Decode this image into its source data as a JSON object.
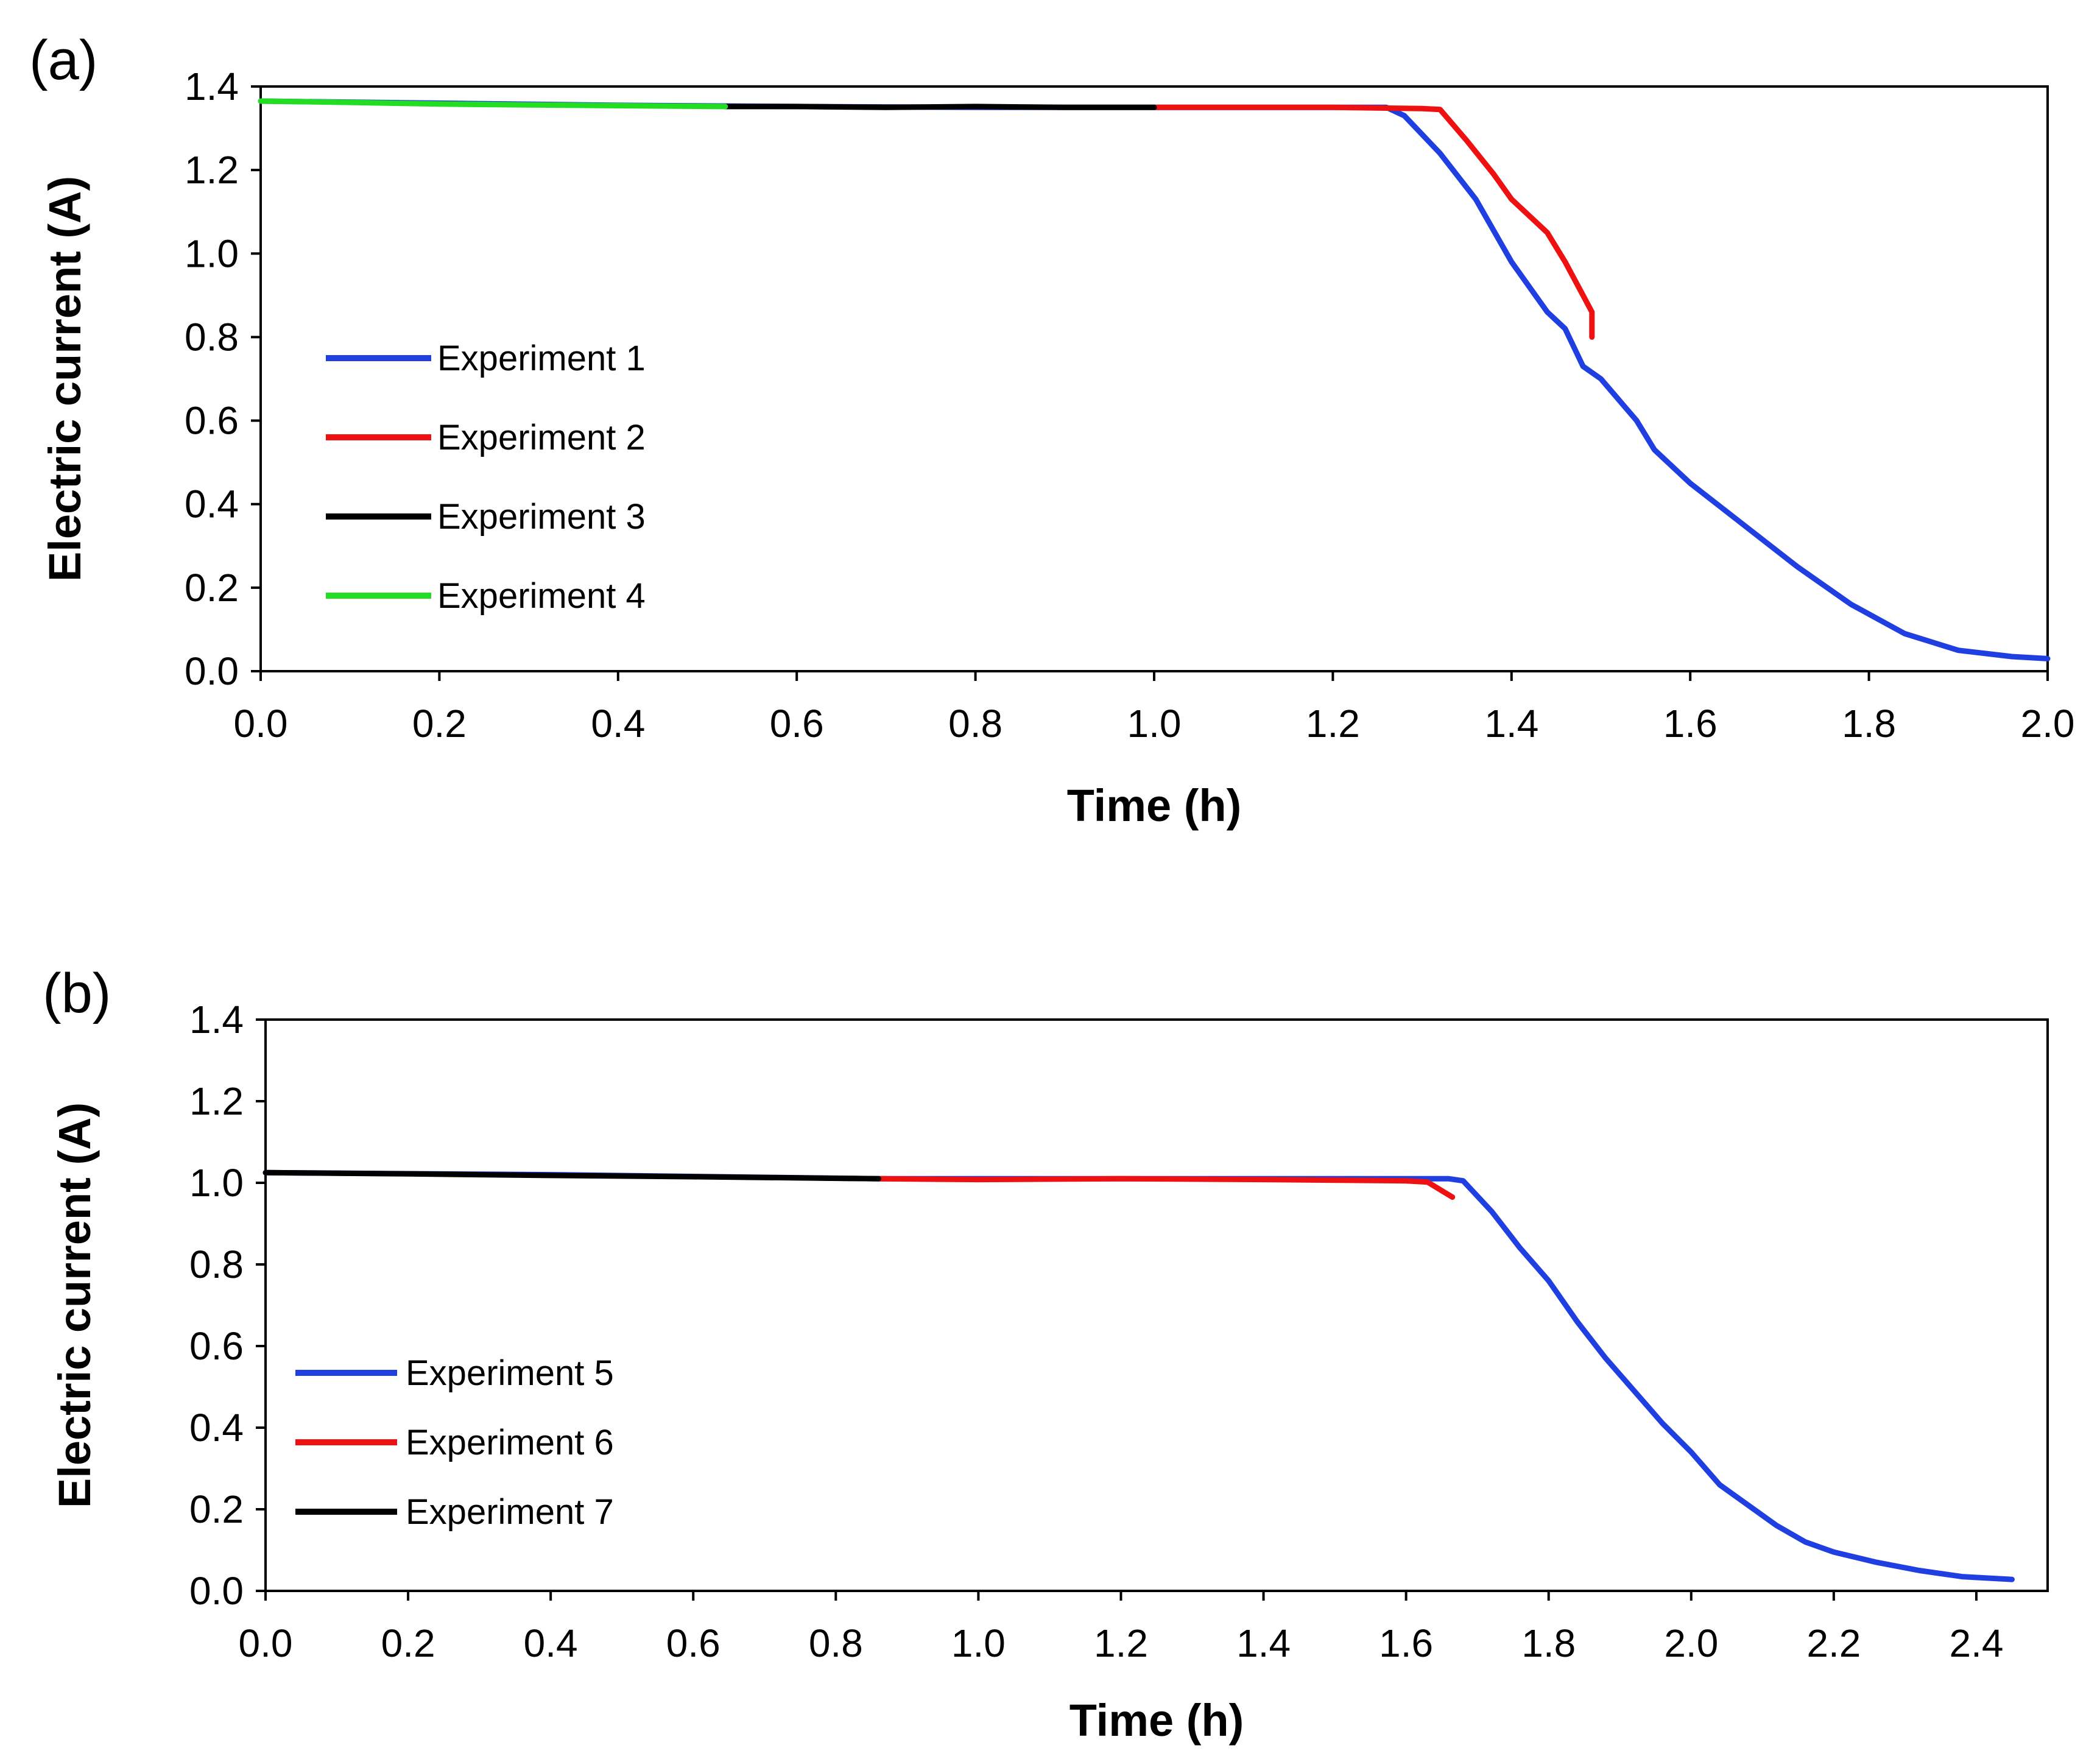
{
  "chart_data": [
    {
      "type": "line",
      "panel_label": "(a)",
      "xlabel": "Time (h)",
      "ylabel": "Electric current (A)",
      "xlim": [
        0,
        2.0
      ],
      "ylim": [
        0,
        1.4
      ],
      "xticks": [
        "0.0",
        "0.2",
        "0.4",
        "0.6",
        "0.8",
        "1.0",
        "1.2",
        "1.4",
        "1.6",
        "1.8",
        "2.0"
      ],
      "yticks": [
        "0.0",
        "0.2",
        "0.4",
        "0.6",
        "0.8",
        "1.0",
        "1.2",
        "1.4"
      ],
      "legend_position": "left-middle",
      "series": [
        {
          "name": "Experiment 1",
          "color": "#1f3fe0",
          "x": [
            0,
            0.2,
            0.4,
            0.6,
            0.8,
            1.0,
            1.2,
            1.26,
            1.28,
            1.32,
            1.36,
            1.4,
            1.44,
            1.46,
            1.48,
            1.5,
            1.54,
            1.56,
            1.6,
            1.66,
            1.72,
            1.78,
            1.84,
            1.9,
            1.96,
            2.0
          ],
          "y": [
            1.365,
            1.36,
            1.355,
            1.352,
            1.35,
            1.35,
            1.35,
            1.35,
            1.33,
            1.24,
            1.13,
            0.98,
            0.86,
            0.82,
            0.73,
            0.7,
            0.6,
            0.53,
            0.45,
            0.35,
            0.25,
            0.16,
            0.09,
            0.05,
            0.035,
            0.03
          ]
        },
        {
          "name": "Experiment 2",
          "color": "#ee1111",
          "x": [
            1.0,
            1.2,
            1.3,
            1.32,
            1.35,
            1.38,
            1.4,
            1.44,
            1.46,
            1.48,
            1.49,
            1.49
          ],
          "y": [
            1.35,
            1.35,
            1.347,
            1.345,
            1.27,
            1.19,
            1.13,
            1.05,
            0.98,
            0.9,
            0.86,
            0.8
          ]
        },
        {
          "name": "Experiment 3",
          "color": "#000000",
          "x": [
            0.52,
            0.6,
            0.7,
            0.8,
            0.9,
            1.0
          ],
          "y": [
            1.352,
            1.352,
            1.35,
            1.352,
            1.35,
            1.35
          ]
        },
        {
          "name": "Experiment 4",
          "color": "#22dd22",
          "x": [
            0,
            0.1,
            0.2,
            0.3,
            0.4,
            0.52
          ],
          "y": [
            1.365,
            1.362,
            1.358,
            1.356,
            1.354,
            1.352
          ]
        }
      ]
    },
    {
      "type": "line",
      "panel_label": "(b)",
      "xlabel": "Time (h)",
      "ylabel": "Electric current (A)",
      "xlim": [
        0,
        2.5
      ],
      "ylim": [
        0,
        1.4
      ],
      "xticks": [
        "0.0",
        "0.2",
        "0.4",
        "0.6",
        "0.8",
        "1.0",
        "1.2",
        "1.4",
        "1.6",
        "1.8",
        "2.0",
        "2.2",
        "2.4"
      ],
      "yticks": [
        "0.0",
        "0.2",
        "0.4",
        "0.6",
        "0.8",
        "1.0",
        "1.2",
        "1.4"
      ],
      "legend_position": "left-lower",
      "series": [
        {
          "name": "Experiment 5",
          "color": "#1f3fe0",
          "x": [
            0,
            0.4,
            0.86,
            1.2,
            1.6,
            1.66,
            1.68,
            1.72,
            1.76,
            1.8,
            1.84,
            1.88,
            1.92,
            1.96,
            2.0,
            2.04,
            2.08,
            2.12,
            2.16,
            2.2,
            2.26,
            2.32,
            2.38,
            2.45
          ],
          "y": [
            1.025,
            1.02,
            1.01,
            1.01,
            1.01,
            1.01,
            1.005,
            0.93,
            0.84,
            0.76,
            0.66,
            0.57,
            0.49,
            0.41,
            0.34,
            0.26,
            0.21,
            0.16,
            0.12,
            0.095,
            0.07,
            0.05,
            0.035,
            0.028
          ]
        },
        {
          "name": "Experiment 6",
          "color": "#ee1111",
          "x": [
            0.86,
            1.0,
            1.2,
            1.4,
            1.6,
            1.63,
            1.665
          ],
          "y": [
            1.01,
            1.008,
            1.01,
            1.008,
            1.005,
            1.002,
            0.965
          ]
        },
        {
          "name": "Experiment 7",
          "color": "#000000",
          "x": [
            0,
            0.2,
            0.4,
            0.6,
            0.86
          ],
          "y": [
            1.025,
            1.022,
            1.018,
            1.015,
            1.01
          ]
        }
      ]
    }
  ]
}
